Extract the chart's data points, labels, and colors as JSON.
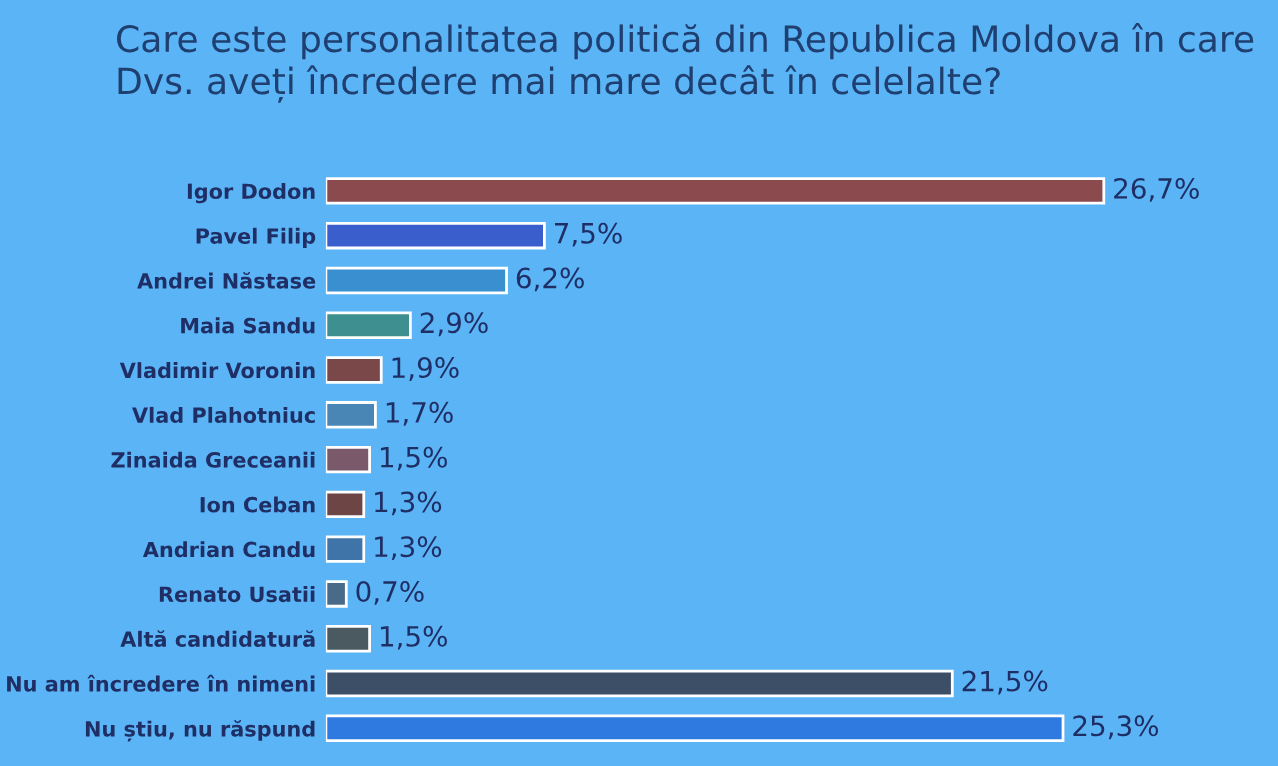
{
  "chart_data": {
    "type": "bar",
    "orientation": "horizontal",
    "title": "Care este personalitatea politică din Republica Moldova în care Dvs. aveți încredere mai mare decât în celelalte?",
    "categories": [
      "Igor Dodon",
      "Pavel Filip",
      "Andrei Năstase",
      "Maia Sandu",
      "Vladimir Voronin",
      "Vlad Plahotniuc",
      "Zinaida Greceanii",
      "Ion Ceban",
      "Andrian Candu",
      "Renato Usatii",
      "Altă candidatură",
      "Nu am încredere în nimeni",
      "Nu știu, nu răspund"
    ],
    "values": [
      26.7,
      7.5,
      6.2,
      2.9,
      1.9,
      1.7,
      1.5,
      1.3,
      1.3,
      0.7,
      1.5,
      21.5,
      25.3
    ],
    "value_labels": [
      "26,7%",
      "7,5%",
      "6,2%",
      "2,9%",
      "1,9%",
      "1,7%",
      "1,5%",
      "1,3%",
      "1,3%",
      "0,7%",
      "1,5%",
      "21,5%",
      "25,3%"
    ],
    "colors": [
      "#8a4a4e",
      "#3a5fcd",
      "#3a8fd0",
      "#3e8f8f",
      "#7a4848",
      "#4a86b5",
      "#7a5a6a",
      "#6e4545",
      "#3f74a8",
      "#4a6a8a",
      "#4a5a60",
      "#3d4f66",
      "#2f7ae0"
    ],
    "grid": false,
    "legend": false
  }
}
